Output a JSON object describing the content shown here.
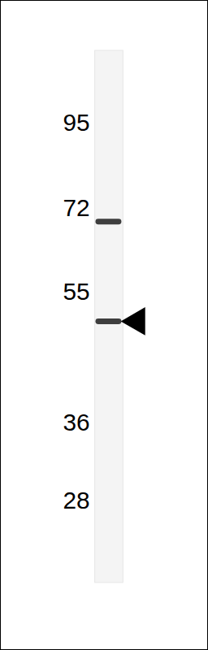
{
  "chart_data": {
    "type": "blot",
    "log": "y",
    "ylim": [
      21.5,
      120
    ],
    "yticks": [
      95,
      72,
      55,
      36,
      28
    ],
    "bands": [
      69,
      50
    ],
    "annotations": [
      {
        "type": "arrow",
        "y": 50
      }
    ]
  }
}
